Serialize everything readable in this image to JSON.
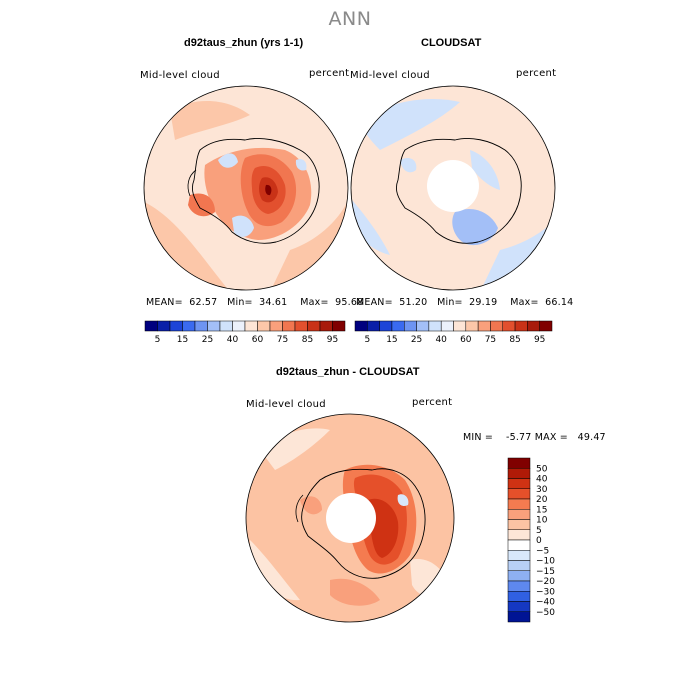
{
  "main_title": "ANN",
  "chart_data": [
    {
      "type": "heatmap",
      "projection": "south polar stereographic",
      "title": "d92taus_zhun (yrs 1-1)",
      "variable": "Mid-level cloud",
      "units": "percent",
      "stats": {
        "mean": "62.57",
        "min": "34.61",
        "max": "95.68"
      },
      "mean_label": "MEAN=",
      "min_label": "Min=",
      "max_label": "Max=",
      "levels": [
        5,
        15,
        25,
        40,
        60,
        75,
        85,
        95
      ],
      "colors": [
        "#00007f",
        "#0a1fa8",
        "#1c44d8",
        "#3a6af0",
        "#6e94f2",
        "#a3bff7",
        "#d0e2fb",
        "#ecf1fb",
        "#fde5d6",
        "#fcc7a9",
        "#f9a07c",
        "#f17650",
        "#e2502e",
        "#c93217",
        "#a81b0b",
        "#800000"
      ]
    },
    {
      "type": "heatmap",
      "projection": "south polar stereographic",
      "title": "CLOUDSAT",
      "variable": "Mid-level cloud",
      "units": "percent",
      "stats": {
        "mean": "51.20",
        "min": "29.19",
        "max": "66.14"
      },
      "mean_label": "MEAN=",
      "min_label": "Min=",
      "max_label": "Max=",
      "levels": [
        5,
        15,
        25,
        40,
        60,
        75,
        85,
        95
      ],
      "colors": [
        "#00007f",
        "#0a1fa8",
        "#1c44d8",
        "#3a6af0",
        "#6e94f2",
        "#a3bff7",
        "#d0e2fb",
        "#ecf1fb",
        "#fde5d6",
        "#fcc7a9",
        "#f9a07c",
        "#f17650",
        "#e2502e",
        "#c93217",
        "#a81b0b",
        "#800000"
      ]
    },
    {
      "type": "heatmap",
      "projection": "south polar stereographic",
      "title": "d92taus_zhun - CLOUDSAT",
      "variable": "Mid-level cloud",
      "units": "percent",
      "range_text": "MIN =    -5.77 MAX =   49.47",
      "stats": {
        "min": "-5.77",
        "max": "49.47"
      },
      "levels": [
        "50",
        "40",
        "30",
        "20",
        "15",
        "10",
        "5",
        "0",
        "−5",
        "−10",
        "−15",
        "−20",
        "−30",
        "−40",
        "−50"
      ],
      "colors": [
        "#800000",
        "#b01a07",
        "#cf3213",
        "#e5502a",
        "#f47b50",
        "#f9a07c",
        "#fcc3a3",
        "#fde6d7",
        "#ffffff",
        "#d8e8fb",
        "#b8d0f6",
        "#8eb0f2",
        "#5e88ee",
        "#3060e2",
        "#1538c2",
        "#001494"
      ]
    }
  ]
}
